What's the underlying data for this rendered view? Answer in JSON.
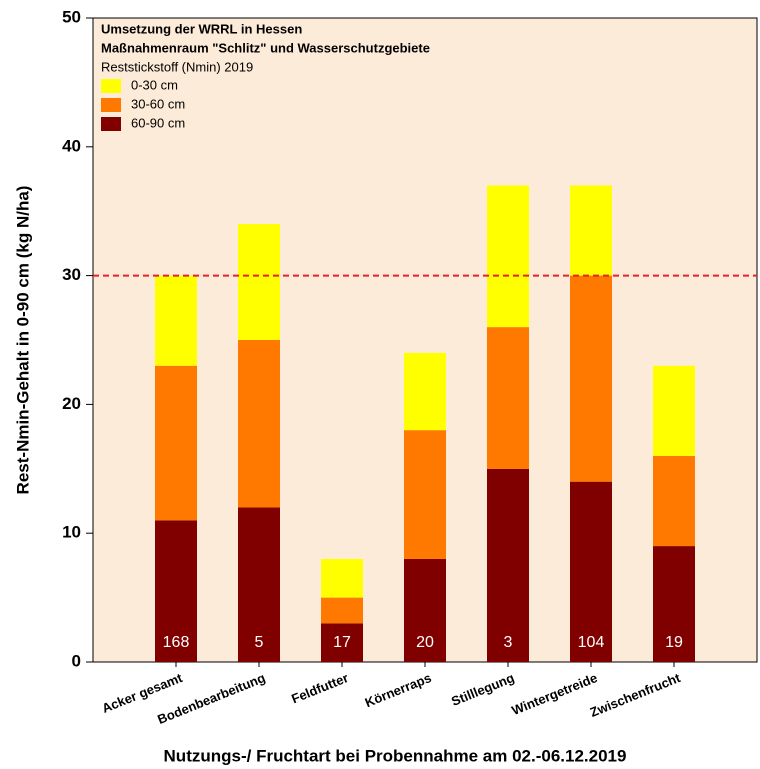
{
  "chart_data": {
    "type": "stacked_bar",
    "title": "Umsetzung der WRRL in Hessen",
    "subtitle": "Maßnahmenraum \"Schlitz\" und Wasserschutzgebiete",
    "legend_title": "Reststickstoff (Nmin) 2019",
    "x_label": "Nutzungs-/ Fruchtart bei Probennahme am 02.-06.12.2019",
    "y_label": "Rest-Nmin-Gehalt in 0-90 cm (kg N/ha)",
    "categories": [
      "Acker gesamt",
      "Bodenbearbeitung",
      "Feldfutter",
      "Körnerraps",
      "Stilllegung",
      "Wintergetreide",
      "Zwischenfrucht"
    ],
    "series": [
      {
        "name": "60-90 cm",
        "color": "#800000",
        "values": [
          11,
          12,
          3,
          8,
          15,
          14,
          9
        ]
      },
      {
        "name": "30-60 cm",
        "color": "#ff7800",
        "values": [
          12,
          13,
          2,
          10,
          11,
          16,
          7
        ]
      },
      {
        "name": "0-30 cm",
        "color": "#ffff00",
        "values": [
          7,
          9,
          3,
          6,
          11,
          7,
          7
        ]
      }
    ],
    "sample_counts": [
      168,
      5,
      17,
      20,
      3,
      104,
      19
    ],
    "reference_line": 30,
    "ylim": [
      0,
      50
    ],
    "yticks": [
      0,
      10,
      20,
      30,
      40,
      50
    ],
    "legend": "upper left"
  }
}
